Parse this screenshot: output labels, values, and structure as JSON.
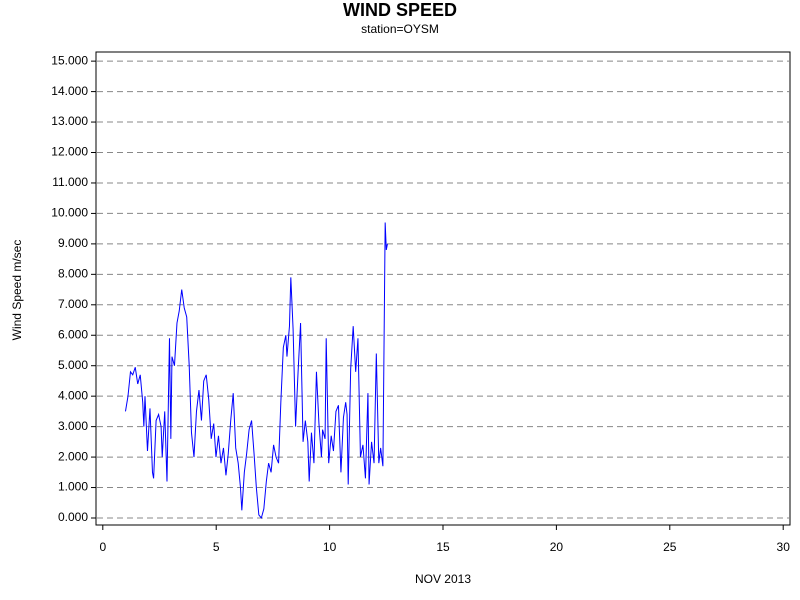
{
  "chart_data": {
    "type": "line",
    "title": "WIND SPEED",
    "subtitle": "station=OYSM",
    "y_label": "Wind Speed m/sec",
    "x_label": "NOV 2013",
    "color": "#0000ff",
    "grid": true,
    "xlim": [
      -0.3,
      30.3
    ],
    "ylim": [
      -0.23,
      15.3
    ],
    "xticks": [
      0,
      5,
      10,
      15,
      20,
      25,
      30
    ],
    "yticks": [
      {
        "value": 0,
        "label": "0.000"
      },
      {
        "value": 1,
        "label": "1.000"
      },
      {
        "value": 2,
        "label": "2.000"
      },
      {
        "value": 3,
        "label": "3.000"
      },
      {
        "value": 4,
        "label": "4.000"
      },
      {
        "value": 5,
        "label": "5.000"
      },
      {
        "value": 6,
        "label": "6.000"
      },
      {
        "value": 7,
        "label": "7.000"
      },
      {
        "value": 8,
        "label": "8.000"
      },
      {
        "value": 9,
        "label": "9.000"
      },
      {
        "value": 10,
        "label": "10.000"
      },
      {
        "value": 11,
        "label": "11.000"
      },
      {
        "value": 12,
        "label": "12.000"
      },
      {
        "value": 13,
        "label": "13.000"
      },
      {
        "value": 14,
        "label": "14.000"
      },
      {
        "value": 15,
        "label": "15.000"
      }
    ],
    "x": [
      1.0,
      1.11,
      1.22,
      1.32,
      1.43,
      1.54,
      1.65,
      1.76,
      1.81,
      1.86,
      1.97,
      2.08,
      2.19,
      2.24,
      2.35,
      2.46,
      2.57,
      2.62,
      2.73,
      2.83,
      2.94,
      3.0,
      3.05,
      3.16,
      3.27,
      3.37,
      3.48,
      3.59,
      3.7,
      3.81,
      3.91,
      4.02,
      4.13,
      4.24,
      4.35,
      4.45,
      4.56,
      4.67,
      4.78,
      4.89,
      4.99,
      5.1,
      5.21,
      5.32,
      5.43,
      5.53,
      5.64,
      5.75,
      5.86,
      5.97,
      6.07,
      6.13,
      6.24,
      6.34,
      6.45,
      6.56,
      6.67,
      6.77,
      6.88,
      6.99,
      7.1,
      7.21,
      7.31,
      7.42,
      7.53,
      7.64,
      7.75,
      7.85,
      7.96,
      8.07,
      8.12,
      8.23,
      8.29,
      8.39,
      8.5,
      8.61,
      8.72,
      8.83,
      8.93,
      9.04,
      9.1,
      9.2,
      9.31,
      9.42,
      9.53,
      9.64,
      9.69,
      9.8,
      9.85,
      9.96,
      10.07,
      10.17,
      10.28,
      10.39,
      10.5,
      10.61,
      10.71,
      10.77,
      10.82,
      10.93,
      11.04,
      11.15,
      11.25,
      11.36,
      11.47,
      11.58,
      11.69,
      11.74,
      11.85,
      11.96,
      12.06,
      12.17,
      12.25,
      12.35,
      12.45,
      12.5,
      12.55
    ],
    "values": [
      3.5,
      4.0,
      4.8,
      4.7,
      4.95,
      4.4,
      4.7,
      3.8,
      3.0,
      4.0,
      2.2,
      3.6,
      1.5,
      1.3,
      3.2,
      3.4,
      3.0,
      2.0,
      3.5,
      1.2,
      5.9,
      2.6,
      5.3,
      5.0,
      6.4,
      6.8,
      7.5,
      6.9,
      6.6,
      5.0,
      2.8,
      2.0,
      3.5,
      4.2,
      3.2,
      4.5,
      4.7,
      3.9,
      2.6,
      3.1,
      2.0,
      2.7,
      1.8,
      2.3,
      1.4,
      2.1,
      3.2,
      4.1,
      2.3,
      1.8,
      1.0,
      0.25,
      1.5,
      2.1,
      2.9,
      3.2,
      2.1,
      1.0,
      0.1,
      0.0,
      0.3,
      1.2,
      1.8,
      1.5,
      2.4,
      2.0,
      1.8,
      3.8,
      5.6,
      6.0,
      5.3,
      6.3,
      7.9,
      6.2,
      3.0,
      4.8,
      6.4,
      2.5,
      3.2,
      2.5,
      1.2,
      2.8,
      1.8,
      4.8,
      3.1,
      2.0,
      2.9,
      2.6,
      5.9,
      1.8,
      2.7,
      2.2,
      3.5,
      3.7,
      1.5,
      3.3,
      3.8,
      3.4,
      1.1,
      4.9,
      6.3,
      4.8,
      5.9,
      2.0,
      2.4,
      1.3,
      4.1,
      1.1,
      2.5,
      1.8,
      5.4,
      1.8,
      2.3,
      1.7,
      9.7,
      8.8,
      9.0
    ]
  }
}
